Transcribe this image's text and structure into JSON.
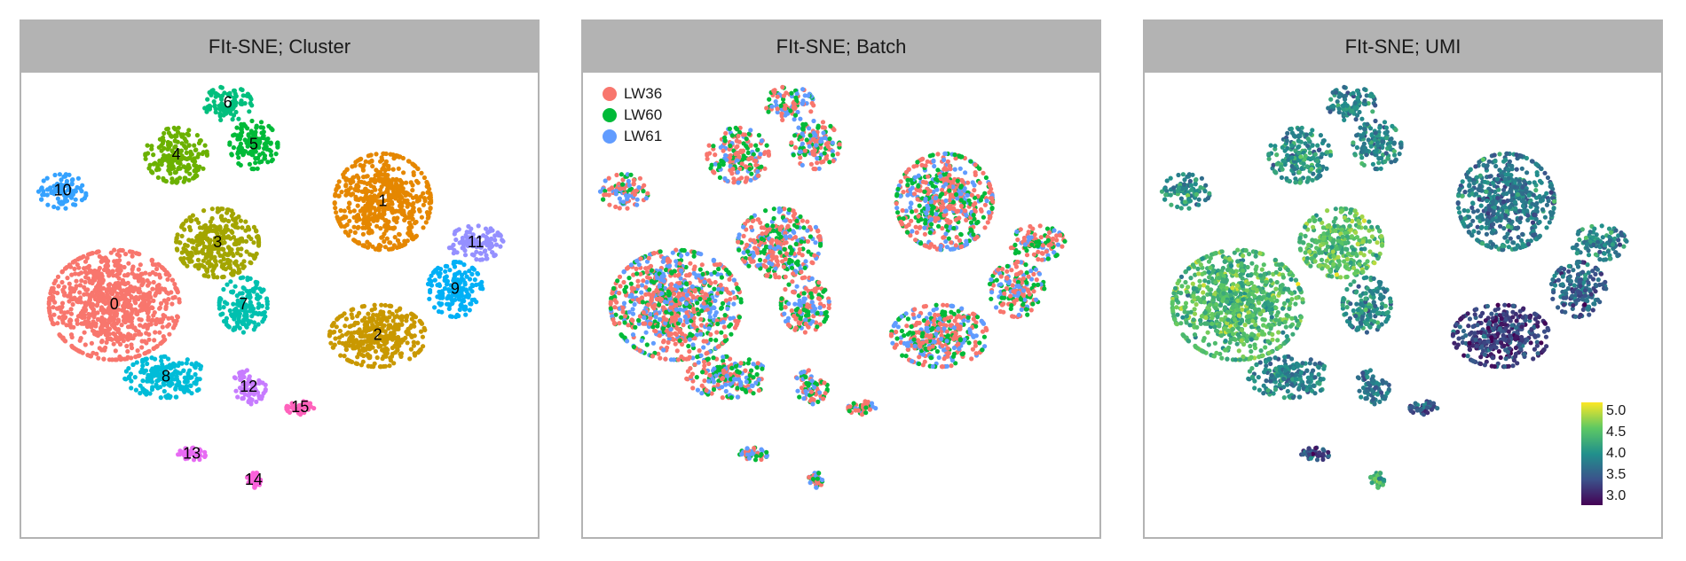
{
  "chart_data": [
    {
      "type": "scatter",
      "title": "FIt-SNE; Cluster",
      "color_by": "cluster",
      "grid": false,
      "xlim": [
        -50,
        50
      ],
      "ylim": [
        -45,
        45
      ],
      "clusters": [
        {
          "label": "0",
          "color": "#F8766D",
          "center": [
            -32,
            0
          ],
          "spread": [
            9.5,
            8
          ]
        },
        {
          "label": "1",
          "color": "#E58700",
          "center": [
            20,
            20
          ],
          "spread": [
            7,
            7
          ]
        },
        {
          "label": "2",
          "color": "#C99800",
          "center": [
            19,
            -6
          ],
          "spread": [
            7,
            4.5
          ]
        },
        {
          "label": "3",
          "color": "#A3A500",
          "center": [
            -12,
            12
          ],
          "spread": [
            6,
            5
          ]
        },
        {
          "label": "4",
          "color": "#6BB100",
          "center": [
            -20,
            29
          ],
          "spread": [
            4.5,
            4
          ]
        },
        {
          "label": "5",
          "color": "#00BA38",
          "center": [
            -5,
            31
          ],
          "spread": [
            3.5,
            3.5
          ]
        },
        {
          "label": "6",
          "color": "#00BF7D",
          "center": [
            -10,
            39
          ],
          "spread": [
            3.5,
            2.5
          ]
        },
        {
          "label": "7",
          "color": "#00C0AF",
          "center": [
            -7,
            0
          ],
          "spread": [
            3.5,
            4
          ]
        },
        {
          "label": "8",
          "color": "#00BCD8",
          "center": [
            -22,
            -14
          ],
          "spread": [
            6,
            3
          ]
        },
        {
          "label": "9",
          "color": "#00B0F6",
          "center": [
            34,
            3
          ],
          "spread": [
            4,
            4
          ]
        },
        {
          "label": "10",
          "color": "#35A2FF",
          "center": [
            -42,
            22
          ],
          "spread": [
            3.5,
            2.5
          ]
        },
        {
          "label": "11",
          "color": "#9590FF",
          "center": [
            38,
            12
          ],
          "spread": [
            4,
            2.5
          ]
        },
        {
          "label": "12",
          "color": "#C77CFF",
          "center": [
            -6,
            -16
          ],
          "spread": [
            2.5,
            2.5
          ]
        },
        {
          "label": "13",
          "color": "#E76BF3",
          "center": [
            -17,
            -29
          ],
          "spread": [
            2,
            1
          ]
        },
        {
          "label": "14",
          "color": "#FA62DB",
          "center": [
            -5,
            -34
          ],
          "spread": [
            1,
            1.2
          ]
        },
        {
          "label": "15",
          "color": "#FF62BC",
          "center": [
            4,
            -20
          ],
          "spread": [
            2,
            1
          ]
        }
      ]
    },
    {
      "type": "scatter",
      "title": "FIt-SNE; Batch",
      "color_by": "batch",
      "grid": false,
      "legend": {
        "placement": "top-left",
        "items": [
          {
            "label": "LW36",
            "color": "#F8766D"
          },
          {
            "label": "LW60",
            "color": "#00BA38"
          },
          {
            "label": "LW61",
            "color": "#619CFF"
          }
        ]
      }
    },
    {
      "type": "scatter",
      "title": "FIt-SNE; UMI",
      "color_by": "umi",
      "grid": false,
      "colorbar": {
        "placement": "bottom-right",
        "range": [
          2.8,
          5.2
        ],
        "ticks": [
          "5.0",
          "4.5",
          "4.0",
          "3.5",
          "3.0"
        ],
        "tick_values": [
          5.0,
          4.5,
          4.0,
          3.5,
          3.0
        ],
        "colors": [
          "#440154",
          "#3B528B",
          "#21908C",
          "#5DC863",
          "#FDE725"
        ]
      },
      "cluster_umi": [
        4.45,
        3.8,
        3.25,
        4.5,
        4.05,
        3.9,
        3.85,
        4.0,
        3.9,
        3.6,
        3.95,
        3.9,
        3.7,
        3.4,
        4.3,
        3.5
      ]
    }
  ]
}
